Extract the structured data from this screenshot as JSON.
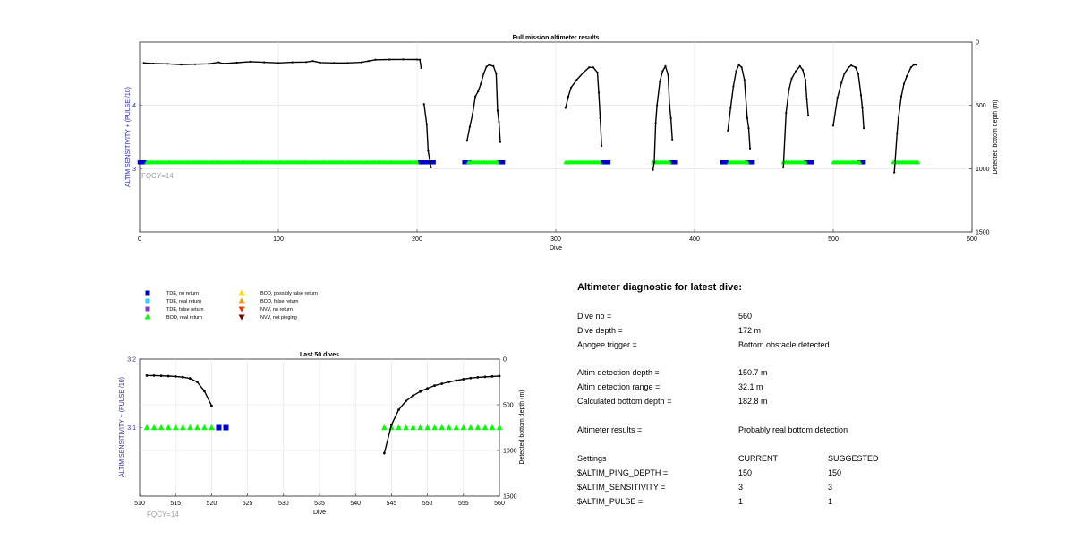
{
  "charts": {
    "full_mission": {
      "title": "Full mission altimeter results",
      "xlabel": "Dive",
      "ylabel_left": "ALTIM SENSITIVITY + (PULSE /10)",
      "ylabel_right": "Detected bottom depth (m)",
      "annotation": "FQCY=14",
      "x_ticks": [
        "0",
        "100",
        "200",
        "300",
        "400",
        "500",
        "600"
      ],
      "y_left_ticks": [
        "3",
        "4"
      ],
      "y_right_ticks": [
        "0",
        "500",
        "1000",
        "1500"
      ]
    },
    "last_50": {
      "title": "Last 50 dives",
      "xlabel": "Dive",
      "ylabel_left": "ALTIM SENSITIVITY + (PULSE /10)",
      "ylabel_right": "Detected bottom depth (m)",
      "annotation": "FQCY=14",
      "x_ticks": [
        "510",
        "515",
        "520",
        "525",
        "530",
        "535",
        "540",
        "545",
        "550",
        "555",
        "560"
      ],
      "y_left_ticks": [
        "3.1",
        "3.2"
      ],
      "y_right_ticks": [
        "0",
        "500",
        "1000",
        "1500"
      ]
    }
  },
  "legend": {
    "items": [
      {
        "label": "TDE, no return",
        "color": "#0000cc",
        "shape": "square"
      },
      {
        "label": "TDE, real return",
        "color": "#33ccff",
        "shape": "square"
      },
      {
        "label": "TDE, false return",
        "color": "#7f3fbf",
        "shape": "square"
      },
      {
        "label": "BOD, real return",
        "color": "#00ff00",
        "shape": "triangle-up"
      },
      {
        "label": "BOD, possibly false return",
        "color": "#ffdd00",
        "shape": "triangle-up"
      },
      {
        "label": "BOD, false return",
        "color": "#ff9900",
        "shape": "triangle-up"
      },
      {
        "label": "NVV, no return",
        "color": "#ff3300",
        "shape": "triangle-down"
      },
      {
        "label": "NVV, not pinging",
        "color": "#7a0000",
        "shape": "triangle-down"
      }
    ]
  },
  "chart_data": [
    {
      "type": "line",
      "title": "Full mission altimeter results",
      "xlabel": "Dive",
      "ylabel": "Detected bottom depth (m)",
      "xlim": [
        0,
        600
      ],
      "ylim_right": [
        0,
        1500
      ],
      "ylim_right_reversed": true,
      "ylim_left": [
        2,
        5
      ],
      "series": [
        {
          "type": "line",
          "color": "#000000",
          "segments": [
            [
              [
                3,
                165
              ],
              [
                10,
                170
              ],
              [
                20,
                172
              ],
              [
                30,
                178
              ],
              [
                40,
                175
              ],
              [
                50,
                172
              ],
              [
                57,
                160
              ],
              [
                60,
                170
              ],
              [
                70,
                163
              ],
              [
                80,
                155
              ],
              [
                90,
                160
              ],
              [
                100,
                165
              ],
              [
                110,
                160
              ],
              [
                120,
                158
              ],
              [
                125,
                150
              ],
              [
                130,
                162
              ],
              [
                140,
                165
              ],
              [
                150,
                165
              ],
              [
                160,
                160
              ],
              [
                165,
                150
              ],
              [
                170,
                140
              ],
              [
                180,
                138
              ],
              [
                190,
                137
              ],
              [
                200,
                138
              ],
              [
                202,
                140
              ],
              [
                203,
                205
              ]
            ],
            [
              [
                205,
                490
              ],
              [
                207,
                650
              ],
              [
                208,
                860
              ],
              [
                209,
                920
              ],
              [
                210,
                990
              ]
            ],
            [
              [
                236,
                780
              ],
              [
                238,
                670
              ],
              [
                240,
                570
              ],
              [
                242,
                430
              ],
              [
                244,
                390
              ],
              [
                246,
                330
              ],
              [
                248,
                250
              ],
              [
                250,
                195
              ],
              [
                252,
                180
              ],
              [
                255,
                190
              ],
              [
                257,
                250
              ],
              [
                258,
                540
              ],
              [
                259,
                630
              ],
              [
                260,
                790
              ]
            ],
            [
              [
                307,
                520
              ],
              [
                309,
                430
              ],
              [
                311,
                360
              ],
              [
                315,
                300
              ],
              [
                320,
                240
              ],
              [
                324,
                200
              ],
              [
                327,
                200
              ],
              [
                330,
                240
              ],
              [
                331,
                400
              ],
              [
                332,
                600
              ],
              [
                333,
                820
              ]
            ],
            [
              [
                370,
                1010
              ],
              [
                371,
                950
              ],
              [
                372,
                640
              ],
              [
                373,
                500
              ],
              [
                375,
                310
              ],
              [
                377,
                230
              ],
              [
                379,
                190
              ],
              [
                381,
                260
              ],
              [
                382,
                500
              ],
              [
                383,
                600
              ],
              [
                384,
                770
              ]
            ],
            [
              [
                424,
                700
              ],
              [
                426,
                520
              ],
              [
                428,
                350
              ],
              [
                430,
                230
              ],
              [
                432,
                180
              ],
              [
                434,
                200
              ],
              [
                436,
                300
              ],
              [
                438,
                600
              ],
              [
                439,
                680
              ],
              [
                440,
                840
              ]
            ],
            [
              [
                464,
                990
              ],
              [
                466,
                560
              ],
              [
                468,
                380
              ],
              [
                470,
                290
              ],
              [
                473,
                230
              ],
              [
                476,
                190
              ],
              [
                478,
                220
              ],
              [
                480,
                300
              ],
              [
                481,
                450
              ],
              [
                482,
                580
              ]
            ],
            [
              [
                500,
                660
              ],
              [
                503,
                440
              ],
              [
                506,
                320
              ],
              [
                508,
                250
              ],
              [
                511,
                200
              ],
              [
                513,
                185
              ],
              [
                516,
                200
              ],
              [
                518,
                250
              ],
              [
                520,
                420
              ],
              [
                521,
                520
              ],
              [
                522,
                680
              ]
            ],
            [
              [
                544,
                1030
              ],
              [
                546,
                720
              ],
              [
                547,
                600
              ],
              [
                549,
                430
              ],
              [
                551,
                330
              ],
              [
                553,
                270
              ],
              [
                556,
                200
              ],
              [
                558,
                180
              ],
              [
                560,
                180
              ]
            ]
          ]
        },
        {
          "type": "markers",
          "name": "TDE, no return",
          "color": "#0000cc",
          "shape": "square",
          "y": 3.1,
          "ranges": [
            [
              0,
              4
            ],
            [
              202,
              212
            ],
            [
              234,
              238
            ],
            [
              259,
              262
            ],
            [
              334,
              338
            ],
            [
              383,
              386
            ],
            [
              420,
              423
            ],
            [
              438,
              442
            ],
            [
              480,
              485
            ],
            [
              519,
              522
            ]
          ]
        },
        {
          "type": "markers",
          "name": "BOD, real return",
          "color": "#00ff00",
          "shape": "triangle-up",
          "y": 3.1,
          "ranges": [
            [
              5,
              200
            ],
            [
              237,
              258
            ],
            [
              307,
              332
            ],
            [
              370,
              382
            ],
            [
              425,
              438
            ],
            [
              464,
              480
            ],
            [
              500,
              519
            ],
            [
              543,
              561
            ]
          ]
        }
      ]
    },
    {
      "type": "line",
      "title": "Last 50 dives",
      "xlabel": "Dive",
      "ylabel": "Detected bottom depth (m)",
      "xlim": [
        510,
        560
      ],
      "ylim_right": [
        0,
        1500
      ],
      "ylim_right_reversed": true,
      "ylim_left": [
        3.0,
        3.2
      ],
      "series": [
        {
          "type": "line",
          "color": "#000000",
          "segments": [
            [
              [
                511,
                180
              ],
              [
                512,
                180
              ],
              [
                513,
                183
              ],
              [
                514,
                186
              ],
              [
                515,
                190
              ],
              [
                516,
                198
              ],
              [
                517,
                212
              ],
              [
                518,
                250
              ],
              [
                519,
                350
              ],
              [
                520,
                510
              ]
            ],
            [
              [
                544,
                1030
              ],
              [
                545,
                720
              ],
              [
                546,
                555
              ],
              [
                547,
                460
              ],
              [
                548,
                400
              ],
              [
                549,
                355
              ],
              [
                550,
                320
              ],
              [
                551,
                290
              ],
              [
                552,
                270
              ],
              [
                553,
                250
              ],
              [
                554,
                235
              ],
              [
                555,
                220
              ],
              [
                556,
                208
              ],
              [
                557,
                200
              ],
              [
                558,
                195
              ],
              [
                559,
                190
              ],
              [
                560,
                185
              ]
            ]
          ]
        },
        {
          "type": "markers",
          "name": "BOD, real return",
          "color": "#00ff00",
          "shape": "triangle-up",
          "y": 3.1,
          "x": [
            511,
            512,
            513,
            514,
            515,
            516,
            517,
            518,
            519,
            520,
            544,
            545,
            546,
            547,
            548,
            549,
            550,
            551,
            552,
            553,
            554,
            555,
            556,
            557,
            558,
            559,
            560
          ]
        },
        {
          "type": "markers",
          "name": "TDE, no return",
          "color": "#0000cc",
          "shape": "square",
          "y": 3.1,
          "x": [
            521,
            522
          ]
        }
      ]
    }
  ],
  "diagnostic": {
    "title": "Altimeter diagnostic for latest dive:",
    "rows": [
      {
        "label": "Dive no =",
        "value": "560",
        "extra": ""
      },
      {
        "label": "Dive depth =",
        "value": "172 m",
        "extra": ""
      },
      {
        "label": "Apogee trigger =",
        "value": "Bottom obstacle detected",
        "extra": ""
      },
      {
        "label": "Altim detection depth =",
        "value": "150.7 m",
        "extra": ""
      },
      {
        "label": "Altim detection range =",
        "value": "32.1 m",
        "extra": ""
      },
      {
        "label": "Calculated bottom depth =",
        "value": "182.8 m",
        "extra": ""
      },
      {
        "label": "Altimeter results =",
        "value": "Probably real bottom detection",
        "extra": ""
      },
      {
        "label": "Settings",
        "value": "CURRENT",
        "extra": "SUGGESTED"
      },
      {
        "label": "$ALTIM_PING_DEPTH =",
        "value": "150",
        "extra": "150"
      },
      {
        "label": "$ALTIM_SENSITIVITY =",
        "value": "3",
        "extra": "3"
      },
      {
        "label": "$ALTIM_PULSE =",
        "value": "1",
        "extra": "1"
      }
    ]
  }
}
